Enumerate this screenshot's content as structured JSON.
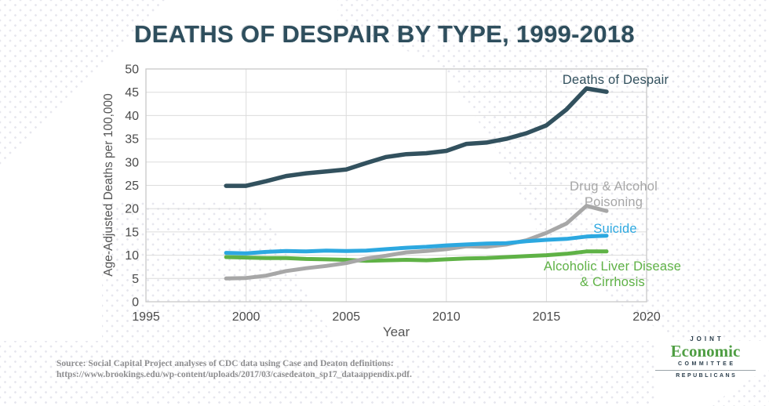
{
  "title": "DEATHS OF DESPAIR BY TYPE, 1999-2018",
  "chart_data": {
    "type": "line",
    "x": [
      1999,
      2000,
      2001,
      2002,
      2003,
      2004,
      2005,
      2006,
      2007,
      2008,
      2009,
      2010,
      2011,
      2012,
      2013,
      2014,
      2015,
      2016,
      2017,
      2018
    ],
    "series": [
      {
        "name": "Deaths of Despair",
        "color": "#32515e",
        "values": [
          24.9,
          24.9,
          25.9,
          27.0,
          27.6,
          28.0,
          28.4,
          29.8,
          31.1,
          31.7,
          31.9,
          32.4,
          33.9,
          34.2,
          35.0,
          36.2,
          37.9,
          41.3,
          45.8,
          45.1
        ]
      },
      {
        "name": "Drug & Alcohol Poisoning",
        "color": "#a7a7a7",
        "values": [
          5.0,
          5.1,
          5.6,
          6.6,
          7.2,
          7.7,
          8.3,
          9.3,
          9.9,
          10.6,
          10.9,
          11.3,
          11.9,
          11.8,
          12.3,
          13.2,
          14.8,
          16.8,
          20.6,
          19.5
        ]
      },
      {
        "name": "Suicide",
        "color": "#2ca8e0",
        "values": [
          10.5,
          10.4,
          10.7,
          10.9,
          10.8,
          11.0,
          10.9,
          11.0,
          11.3,
          11.6,
          11.8,
          12.1,
          12.3,
          12.5,
          12.6,
          13.0,
          13.3,
          13.5,
          14.0,
          14.2
        ]
      },
      {
        "name": "Alcoholic Liver Disease & Cirrhosis",
        "color": "#5fb246",
        "values": [
          9.6,
          9.5,
          9.4,
          9.4,
          9.2,
          9.1,
          9.0,
          8.8,
          8.9,
          9.0,
          8.9,
          9.1,
          9.3,
          9.4,
          9.6,
          9.8,
          10.0,
          10.3,
          10.8,
          10.8
        ]
      }
    ],
    "xlabel": "Year",
    "ylabel": "Age-Adjusted Deaths per 100,000",
    "xlim": [
      1995,
      2020
    ],
    "ylim": [
      0,
      50
    ],
    "xticks": [
      1995,
      2000,
      2005,
      2010,
      2015,
      2020
    ],
    "yticks": [
      0,
      5,
      10,
      15,
      20,
      25,
      30,
      35,
      40,
      45,
      50
    ],
    "grid": true,
    "legend_position": "inline-labels"
  },
  "source": {
    "line1": "Source: Social Capital Project analyses of CDC data using Case and Deaton definitions:",
    "line2": "https://www.brookings.edu/wp-content/uploads/2017/03/casedeaton_sp17_dataappendix.pdf."
  },
  "logo": {
    "joint": "JOINT",
    "economic": "Economic",
    "committee": "COMMITTEE",
    "republicans": "REPUBLICANS"
  }
}
